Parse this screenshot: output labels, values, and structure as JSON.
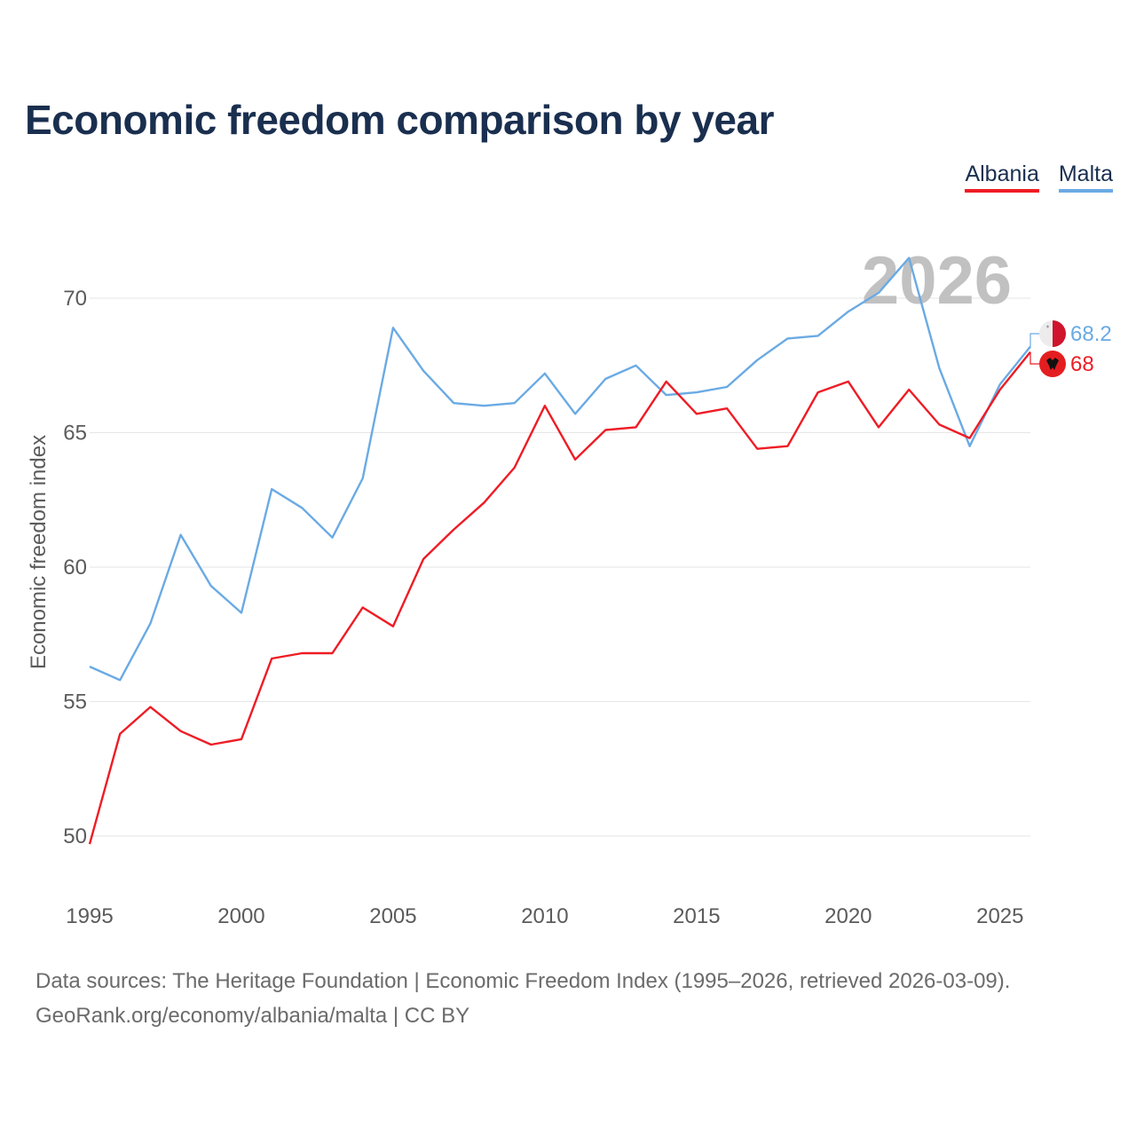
{
  "title": "Economic freedom comparison by year",
  "legend": [
    {
      "name": "Albania",
      "color": "#ee1c25"
    },
    {
      "name": "Malta",
      "color": "#6aaae4"
    }
  ],
  "footer": {
    "line1": "Data sources: The Heritage Foundation | Economic Freedom Index (1995–2026, retrieved 2026-03-09).",
    "line2": "GeoRank.org/economy/albania/malta | CC BY"
  },
  "chart_data": {
    "type": "line",
    "title": "Economic freedom comparison by year",
    "xlabel": "",
    "ylabel": "Economic freedom index",
    "xlim": [
      1995,
      2026
    ],
    "ylim": [
      48,
      72
    ],
    "x_ticks": [
      1995,
      2000,
      2005,
      2010,
      2015,
      2020,
      2025
    ],
    "y_ticks": [
      50,
      55,
      60,
      65,
      70
    ],
    "current_year": "2026",
    "x": [
      1995,
      1996,
      1997,
      1998,
      1999,
      2000,
      2001,
      2002,
      2003,
      2004,
      2005,
      2006,
      2007,
      2008,
      2009,
      2010,
      2011,
      2012,
      2013,
      2014,
      2015,
      2016,
      2017,
      2018,
      2019,
      2020,
      2021,
      2022,
      2023,
      2024,
      2025,
      2026
    ],
    "series": [
      {
        "name": "Albania",
        "color": "#ee1c25",
        "end_label": "68",
        "values": [
          49.7,
          53.8,
          54.8,
          53.9,
          53.4,
          53.6,
          56.6,
          56.8,
          56.8,
          58.5,
          57.8,
          60.3,
          61.4,
          62.4,
          63.7,
          66.0,
          64.0,
          65.1,
          65.2,
          66.9,
          65.7,
          65.9,
          64.4,
          64.5,
          66.5,
          66.9,
          65.2,
          66.6,
          65.3,
          64.8,
          66.6,
          68.0
        ]
      },
      {
        "name": "Malta",
        "color": "#6aaae4",
        "end_label": "68.2",
        "values": [
          56.3,
          55.8,
          57.9,
          61.2,
          59.3,
          58.3,
          62.9,
          62.2,
          61.1,
          63.3,
          68.9,
          67.3,
          66.1,
          66.0,
          66.1,
          67.2,
          65.7,
          67.0,
          67.5,
          66.4,
          66.5,
          66.7,
          67.7,
          68.5,
          68.6,
          69.5,
          70.2,
          71.5,
          67.4,
          64.5,
          66.8,
          68.2
        ]
      }
    ]
  }
}
